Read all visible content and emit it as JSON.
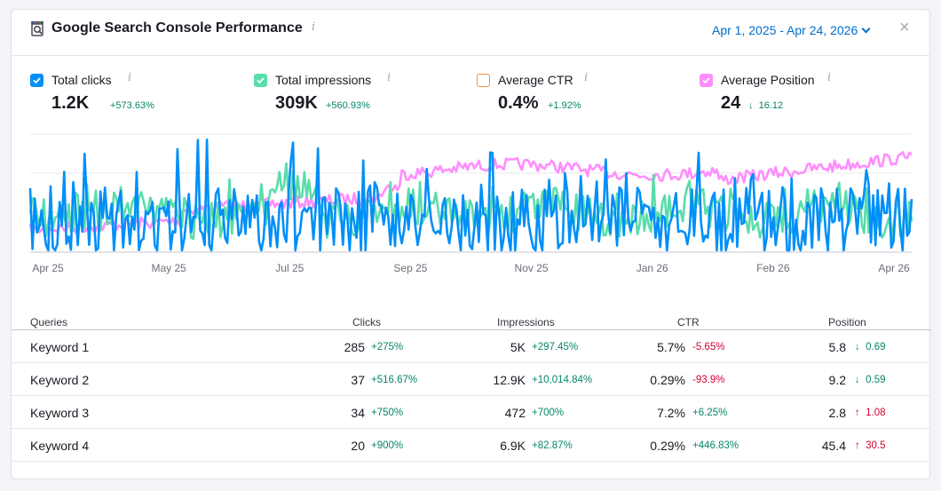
{
  "header": {
    "title": "Google Search Console Performance",
    "info_icon": "i",
    "date_range": "Apr 1, 2025 - Apr 24, 2026",
    "close_icon": "×"
  },
  "metrics": [
    {
      "label": "Total clicks",
      "value": "1.2K",
      "delta": "+573.63%",
      "checked": true,
      "color": "#008ff8"
    },
    {
      "label": "Total impressions",
      "value": "309K",
      "delta": "+560.93%",
      "checked": true,
      "color": "#59ddaa"
    },
    {
      "label": "Average CTR",
      "value": "0.4%",
      "delta": "+1.92%",
      "checked": false,
      "color": "#fd8b3d"
    },
    {
      "label": "Average Position",
      "value": "24",
      "delta": "16.12",
      "delta_arrow": "↓",
      "checked": true,
      "color": "#ff8dff"
    }
  ],
  "chart_data": {
    "type": "line",
    "x_ticks": [
      "Apr 25",
      "May 25",
      "Jul 25",
      "Sep 25",
      "Nov 25",
      "Jan 26",
      "Feb 26",
      "Apr 26"
    ],
    "series": [
      {
        "name": "Total clicks",
        "color": "#008ff8"
      },
      {
        "name": "Total impressions",
        "color": "#59ddaa"
      },
      {
        "name": "Average Position",
        "color": "#ff8dff"
      }
    ],
    "grid": true
  },
  "table": {
    "columns": [
      "Queries",
      "Clicks",
      "Impressions",
      "CTR",
      "Position"
    ],
    "rows": [
      {
        "query": "Keyword 1",
        "clicks": "285",
        "clicks_delta": "+275%",
        "impressions": "5K",
        "impressions_delta": "+297.45%",
        "ctr": "5.7%",
        "ctr_delta": "-5.65%",
        "ctr_dir": "neg",
        "position": "5.8",
        "position_delta": "0.69",
        "position_arrow": "↓",
        "position_dir": "pos"
      },
      {
        "query": "Keyword 2",
        "clicks": "37",
        "clicks_delta": "+516.67%",
        "impressions": "12.9K",
        "impressions_delta": "+10,014.84%",
        "ctr": "0.29%",
        "ctr_delta": "-93.9%",
        "ctr_dir": "neg",
        "position": "9.2",
        "position_delta": "0.59",
        "position_arrow": "↓",
        "position_dir": "pos"
      },
      {
        "query": "Keyword 3",
        "clicks": "34",
        "clicks_delta": "+750%",
        "impressions": "472",
        "impressions_delta": "+700%",
        "ctr": "7.2%",
        "ctr_delta": "+6.25%",
        "ctr_dir": "pos",
        "position": "2.8",
        "position_delta": "1.08",
        "position_arrow": "↑",
        "position_dir": "neg"
      },
      {
        "query": "Keyword 4",
        "clicks": "20",
        "clicks_delta": "+900%",
        "impressions": "6.9K",
        "impressions_delta": "+82.87%",
        "ctr": "0.29%",
        "ctr_delta": "+446.83%",
        "ctr_dir": "pos",
        "position": "45.4",
        "position_delta": "30.5",
        "position_arrow": "↑",
        "position_dir": "neg"
      }
    ]
  }
}
